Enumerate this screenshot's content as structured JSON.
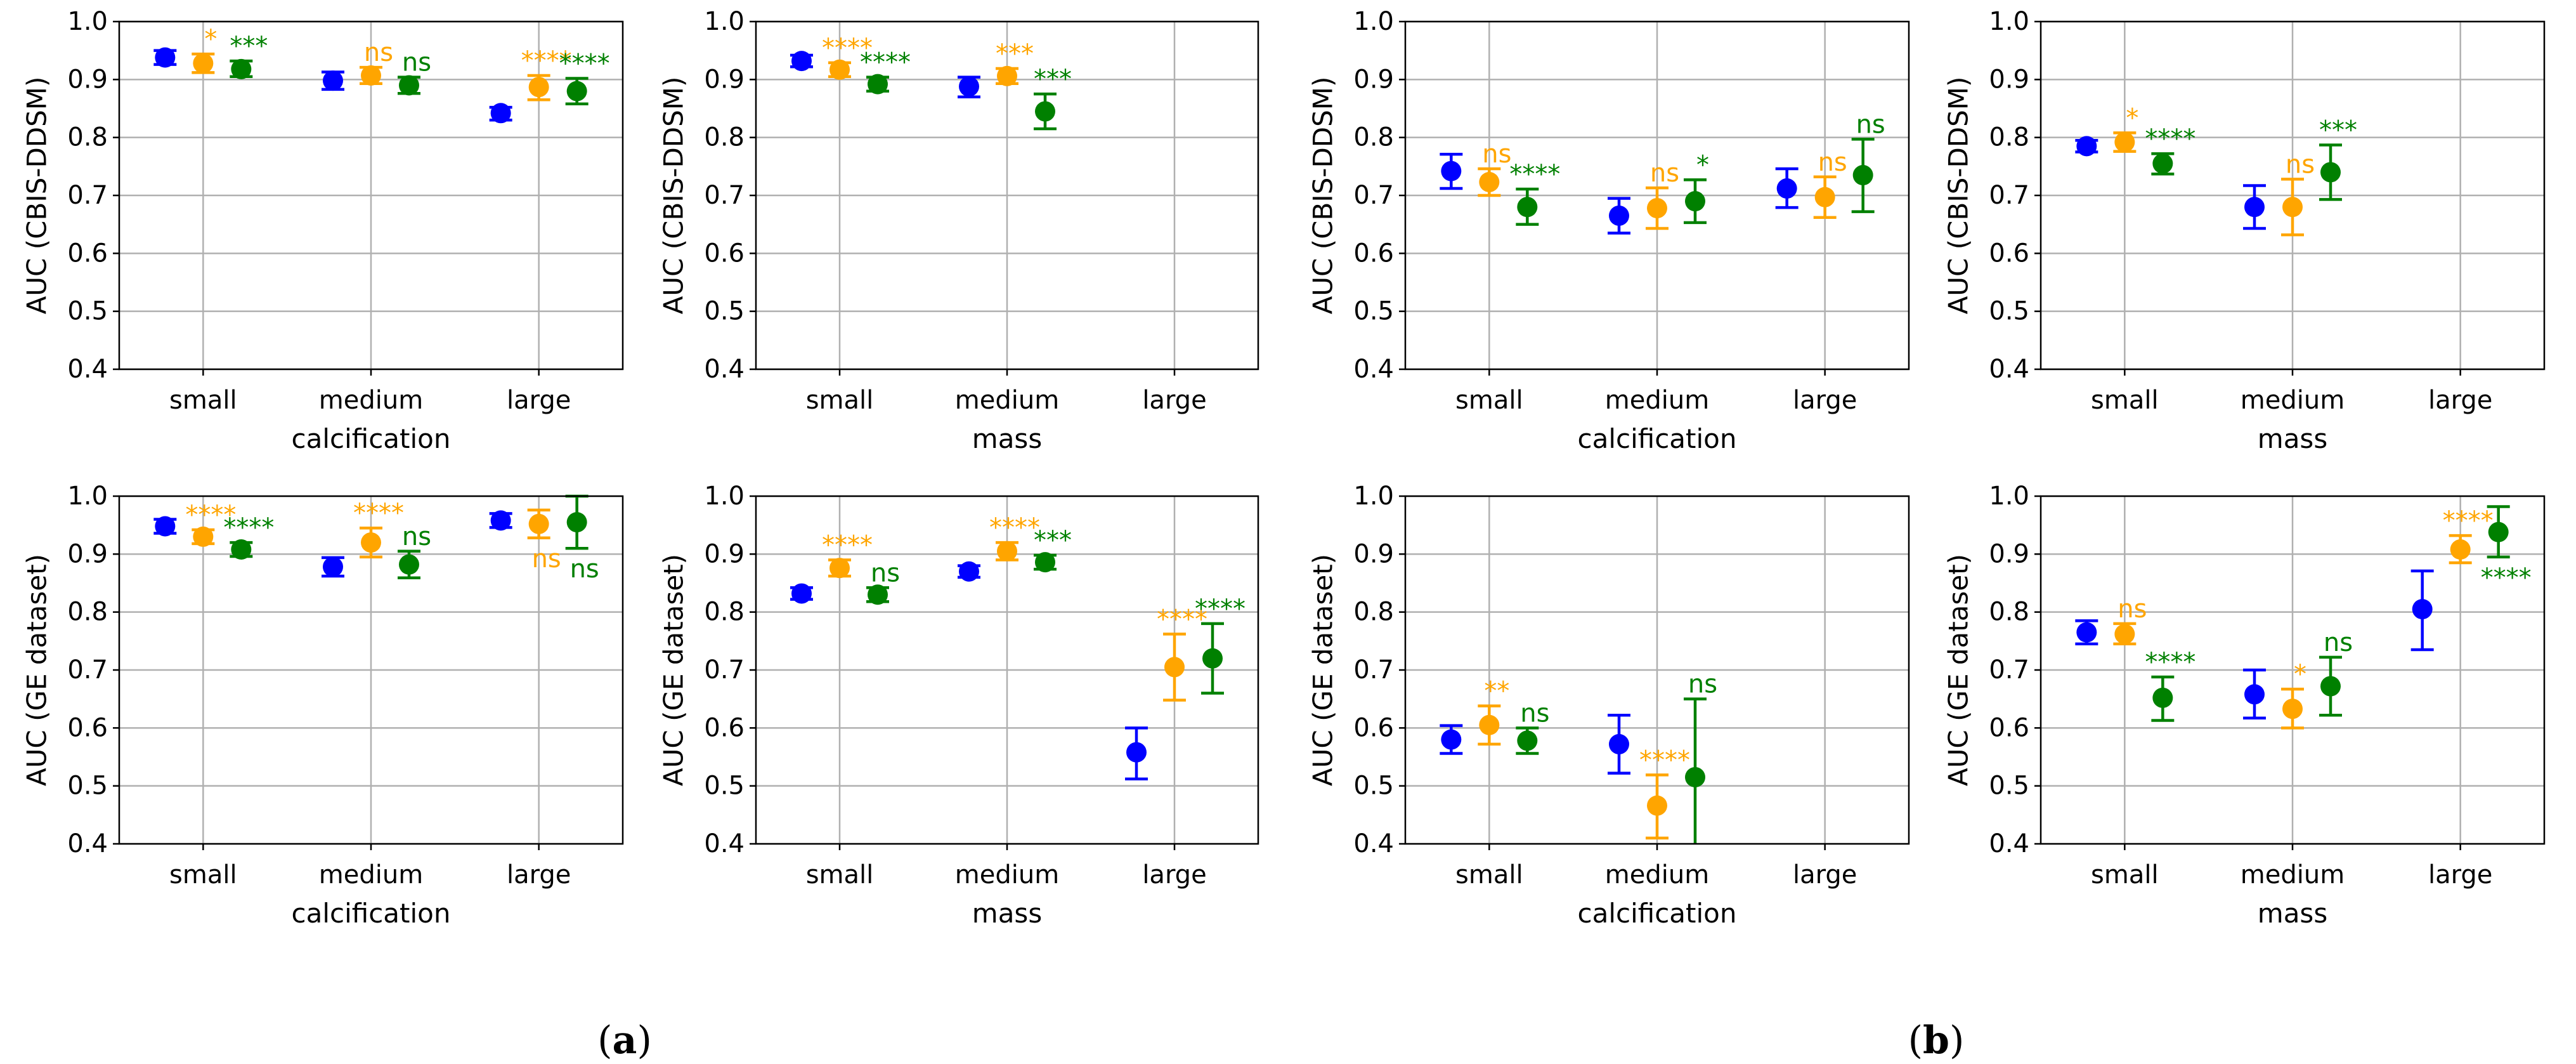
{
  "colors": {
    "series1": "#0000ff",
    "series2": "#ffa500",
    "series3": "#008000",
    "grid": "#b0b0b0"
  },
  "panel_labels": {
    "a": "a",
    "b": "b"
  },
  "chart_data": [
    {
      "type": "scatter",
      "ylabel": "AUC (CBIS-DDSM)",
      "xlabel": "calcification",
      "categories": [
        "small",
        "medium",
        "large"
      ],
      "ylim": [
        0.4,
        1.0
      ],
      "yticks": [
        "0.4",
        "0.5",
        "0.6",
        "0.7",
        "0.8",
        "0.9",
        "1.0"
      ],
      "grid": true,
      "series": [
        {
          "values": [
            0.938,
            0.898,
            0.842
          ],
          "err_low": [
            0.926,
            0.883,
            0.83
          ],
          "err_high": [
            0.95,
            0.913,
            0.852
          ],
          "labels": [
            "",
            "",
            ""
          ],
          "label_pos": [
            "",
            "",
            ""
          ]
        },
        {
          "values": [
            0.928,
            0.907,
            0.887
          ],
          "err_low": [
            0.912,
            0.893,
            0.865
          ],
          "err_high": [
            0.944,
            0.921,
            0.907
          ],
          "labels": [
            "*",
            "ns",
            "****"
          ],
          "label_pos": [
            "above",
            "above",
            "above"
          ]
        },
        {
          "values": [
            0.918,
            0.89,
            0.88
          ],
          "err_low": [
            0.905,
            0.876,
            0.858
          ],
          "err_high": [
            0.932,
            0.904,
            0.902
          ],
          "labels": [
            "***",
            "ns",
            "****"
          ],
          "label_pos": [
            "above",
            "above",
            "above"
          ]
        }
      ]
    },
    {
      "type": "scatter",
      "ylabel": "AUC (CBIS-DDSM)",
      "xlabel": "mass",
      "categories": [
        "small",
        "medium",
        "large"
      ],
      "ylim": [
        0.4,
        1.0
      ],
      "yticks": [
        "0.4",
        "0.5",
        "0.6",
        "0.7",
        "0.8",
        "0.9",
        "1.0"
      ],
      "grid": true,
      "series": [
        {
          "values": [
            0.932,
            0.888,
            null
          ],
          "err_low": [
            0.922,
            0.87,
            null
          ],
          "err_high": [
            0.942,
            0.904,
            null
          ],
          "labels": [
            "",
            "",
            ""
          ],
          "label_pos": [
            "",
            "",
            ""
          ]
        },
        {
          "values": [
            0.917,
            0.906,
            null
          ],
          "err_low": [
            0.905,
            0.893,
            null
          ],
          "err_high": [
            0.929,
            0.919,
            null
          ],
          "labels": [
            "****",
            "***",
            ""
          ],
          "label_pos": [
            "above",
            "above",
            ""
          ]
        },
        {
          "values": [
            0.892,
            0.845,
            null
          ],
          "err_low": [
            0.88,
            0.815,
            null
          ],
          "err_high": [
            0.904,
            0.875,
            null
          ],
          "labels": [
            "****",
            "***",
            ""
          ],
          "label_pos": [
            "above",
            "above",
            ""
          ]
        }
      ]
    },
    {
      "type": "scatter",
      "ylabel": "AUC (CBIS-DDSM)",
      "xlabel": "calcification",
      "categories": [
        "small",
        "medium",
        "large"
      ],
      "ylim": [
        0.4,
        1.0
      ],
      "yticks": [
        "0.4",
        "0.5",
        "0.6",
        "0.7",
        "0.8",
        "0.9",
        "1.0"
      ],
      "grid": true,
      "series": [
        {
          "values": [
            0.742,
            0.665,
            0.712
          ],
          "err_low": [
            0.712,
            0.635,
            0.679
          ],
          "err_high": [
            0.771,
            0.695,
            0.746
          ],
          "labels": [
            "",
            "",
            ""
          ],
          "label_pos": [
            "",
            "",
            ""
          ]
        },
        {
          "values": [
            0.723,
            0.678,
            0.697
          ],
          "err_low": [
            0.7,
            0.643,
            0.662
          ],
          "err_high": [
            0.746,
            0.713,
            0.732
          ],
          "labels": [
            "ns",
            "ns",
            "ns"
          ],
          "label_pos": [
            "above",
            "above",
            "above"
          ]
        },
        {
          "values": [
            0.68,
            0.69,
            0.735
          ],
          "err_low": [
            0.65,
            0.653,
            0.672
          ],
          "err_high": [
            0.711,
            0.727,
            0.797
          ],
          "labels": [
            "****",
            "*",
            "ns"
          ],
          "label_pos": [
            "above",
            "above",
            "above"
          ]
        }
      ]
    },
    {
      "type": "scatter",
      "ylabel": "AUC (CBIS-DDSM)",
      "xlabel": "mass",
      "categories": [
        "small",
        "medium",
        "large"
      ],
      "ylim": [
        0.4,
        1.0
      ],
      "yticks": [
        "0.4",
        "0.5",
        "0.6",
        "0.7",
        "0.8",
        "0.9",
        "1.0"
      ],
      "grid": true,
      "series": [
        {
          "values": [
            0.785,
            0.68,
            null
          ],
          "err_low": [
            0.775,
            0.643,
            null
          ],
          "err_high": [
            0.795,
            0.717,
            null
          ],
          "labels": [
            "",
            "",
            ""
          ],
          "label_pos": [
            "",
            "",
            ""
          ]
        },
        {
          "values": [
            0.792,
            0.68,
            null
          ],
          "err_low": [
            0.776,
            0.632,
            null
          ],
          "err_high": [
            0.808,
            0.728,
            null
          ],
          "labels": [
            "*",
            "ns",
            ""
          ],
          "label_pos": [
            "above",
            "above",
            ""
          ]
        },
        {
          "values": [
            0.755,
            0.74,
            null
          ],
          "err_low": [
            0.737,
            0.693,
            null
          ],
          "err_high": [
            0.772,
            0.787,
            null
          ],
          "labels": [
            "****",
            "***",
            ""
          ],
          "label_pos": [
            "above",
            "above",
            ""
          ]
        }
      ]
    },
    {
      "type": "scatter",
      "ylabel": "AUC (GE dataset)",
      "xlabel": "calcification",
      "categories": [
        "small",
        "medium",
        "large"
      ],
      "ylim": [
        0.4,
        1.0
      ],
      "yticks": [
        "0.4",
        "0.5",
        "0.6",
        "0.7",
        "0.8",
        "0.9",
        "1.0"
      ],
      "grid": true,
      "series": [
        {
          "values": [
            0.948,
            0.878,
            0.958
          ],
          "err_low": [
            0.936,
            0.862,
            0.946
          ],
          "err_high": [
            0.96,
            0.894,
            0.97
          ],
          "labels": [
            "",
            "",
            ""
          ],
          "label_pos": [
            "",
            "",
            ""
          ]
        },
        {
          "values": [
            0.93,
            0.92,
            0.952
          ],
          "err_low": [
            0.918,
            0.895,
            0.928
          ],
          "err_high": [
            0.942,
            0.945,
            0.976
          ],
          "labels": [
            "****",
            "****",
            "ns"
          ],
          "label_pos": [
            "above",
            "above",
            "below"
          ]
        },
        {
          "values": [
            0.908,
            0.882,
            0.955
          ],
          "err_low": [
            0.896,
            0.859,
            0.91
          ],
          "err_high": [
            0.92,
            0.905,
            1.0
          ],
          "labels": [
            "****",
            "ns",
            "ns"
          ],
          "label_pos": [
            "above",
            "above",
            "below"
          ]
        }
      ]
    },
    {
      "type": "scatter",
      "ylabel": "AUC (GE dataset)",
      "xlabel": "mass",
      "categories": [
        "small",
        "medium",
        "large"
      ],
      "ylim": [
        0.4,
        1.0
      ],
      "yticks": [
        "0.4",
        "0.5",
        "0.6",
        "0.7",
        "0.8",
        "0.9",
        "1.0"
      ],
      "grid": true,
      "series": [
        {
          "values": [
            0.832,
            0.87,
            0.558
          ],
          "err_low": [
            0.822,
            0.86,
            0.512
          ],
          "err_high": [
            0.842,
            0.88,
            0.6
          ],
          "labels": [
            "",
            "",
            ""
          ],
          "label_pos": [
            "",
            "",
            ""
          ]
        },
        {
          "values": [
            0.876,
            0.905,
            0.705
          ],
          "err_low": [
            0.862,
            0.89,
            0.648
          ],
          "err_high": [
            0.89,
            0.92,
            0.762
          ],
          "labels": [
            "****",
            "****",
            "****"
          ],
          "label_pos": [
            "above",
            "above",
            "above"
          ]
        },
        {
          "values": [
            0.83,
            0.886,
            0.72
          ],
          "err_low": [
            0.818,
            0.874,
            0.66
          ],
          "err_high": [
            0.842,
            0.898,
            0.78
          ],
          "labels": [
            "ns",
            "***",
            "****"
          ],
          "label_pos": [
            "above",
            "above",
            "above"
          ]
        }
      ]
    },
    {
      "type": "scatter",
      "ylabel": "AUC (GE dataset)",
      "xlabel": "calcification",
      "categories": [
        "small",
        "medium",
        "large"
      ],
      "ylim": [
        0.4,
        1.0
      ],
      "yticks": [
        "0.4",
        "0.5",
        "0.6",
        "0.7",
        "0.8",
        "0.9",
        "1.0"
      ],
      "grid": true,
      "series": [
        {
          "values": [
            0.58,
            0.572,
            null
          ],
          "err_low": [
            0.556,
            0.522,
            null
          ],
          "err_high": [
            0.604,
            0.622,
            null
          ],
          "labels": [
            "",
            "",
            ""
          ],
          "label_pos": [
            "",
            "",
            ""
          ]
        },
        {
          "values": [
            0.605,
            0.466,
            null
          ],
          "err_low": [
            0.572,
            0.41,
            null
          ],
          "err_high": [
            0.638,
            0.519,
            null
          ],
          "labels": [
            "**",
            "****",
            ""
          ],
          "label_pos": [
            "above",
            "above",
            ""
          ]
        },
        {
          "values": [
            0.578,
            0.515,
            null
          ],
          "err_low": [
            0.556,
            0.38,
            null
          ],
          "err_high": [
            0.6,
            0.65,
            null
          ],
          "labels": [
            "ns",
            "ns",
            ""
          ],
          "label_pos": [
            "above",
            "above",
            ""
          ]
        }
      ]
    },
    {
      "type": "scatter",
      "ylabel": "AUC (GE dataset)",
      "xlabel": "mass",
      "categories": [
        "small",
        "medium",
        "large"
      ],
      "ylim": [
        0.4,
        1.0
      ],
      "yticks": [
        "0.4",
        "0.5",
        "0.6",
        "0.7",
        "0.8",
        "0.9",
        "1.0"
      ],
      "grid": true,
      "series": [
        {
          "values": [
            0.765,
            0.658,
            0.805
          ],
          "err_low": [
            0.745,
            0.617,
            0.735
          ],
          "err_high": [
            0.785,
            0.7,
            0.871
          ],
          "labels": [
            "",
            "",
            ""
          ],
          "label_pos": [
            "",
            "",
            ""
          ]
        },
        {
          "values": [
            0.762,
            0.633,
            0.908
          ],
          "err_low": [
            0.745,
            0.6,
            0.885
          ],
          "err_high": [
            0.78,
            0.667,
            0.932
          ],
          "labels": [
            "ns",
            "*",
            "****"
          ],
          "label_pos": [
            "above",
            "above",
            "above"
          ]
        },
        {
          "values": [
            0.652,
            0.672,
            0.938
          ],
          "err_low": [
            0.613,
            0.622,
            0.895
          ],
          "err_high": [
            0.688,
            0.722,
            0.982
          ],
          "labels": [
            "****",
            "ns",
            "****"
          ],
          "label_pos": [
            "above",
            "above",
            "below"
          ]
        }
      ]
    }
  ]
}
